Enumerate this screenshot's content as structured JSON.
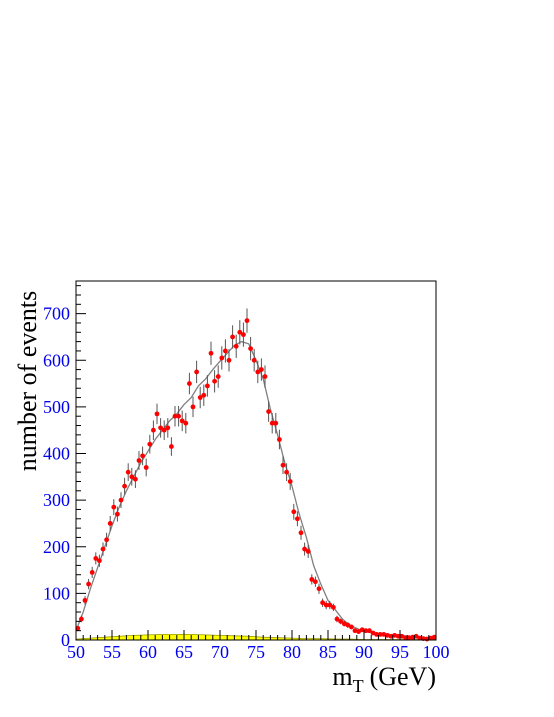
{
  "chart_data": {
    "type": "scatter",
    "title": "",
    "xlabel": "m",
    "xlabel_sub": "T",
    "xlabel_unit": "(GeV)",
    "ylabel": "number of events",
    "xlim": [
      50,
      100
    ],
    "ylim": [
      0,
      770
    ],
    "xticks": [
      "50",
      "55",
      "60",
      "65",
      "70",
      "75",
      "80",
      "85",
      "90",
      "95",
      "100"
    ],
    "yticks": [
      "0",
      "100",
      "200",
      "300",
      "400",
      "500",
      "600",
      "700"
    ],
    "grid": false,
    "colors": {
      "data_points": "#ff0000",
      "fit_curve": "#808080",
      "background": "#ffff00",
      "tick_labels": "#0000ee",
      "axes": "#000000"
    },
    "series": [
      {
        "kind": "data_points_with_errors",
        "x": [
          50.25,
          50.75,
          51.25,
          51.75,
          52.25,
          52.75,
          53.25,
          53.75,
          54.25,
          54.75,
          55.25,
          55.75,
          56.25,
          56.75,
          57.25,
          57.75,
          58.25,
          58.75,
          59.25,
          59.75,
          60.25,
          60.75,
          61.25,
          61.75,
          62.25,
          62.75,
          63.25,
          63.75,
          64.25,
          64.75,
          65.25,
          65.75,
          66.25,
          66.75,
          67.25,
          67.75,
          68.25,
          68.75,
          69.25,
          69.75,
          70.25,
          70.75,
          71.25,
          71.75,
          72.25,
          72.75,
          73.25,
          73.75,
          74.25,
          74.75,
          75.25,
          75.75,
          76.25,
          76.75,
          77.25,
          77.75,
          78.25,
          78.75,
          79.25,
          79.75,
          80.25,
          80.75,
          81.25,
          81.75,
          82.25,
          82.75,
          83.25,
          83.75,
          84.25,
          84.75,
          85.25,
          85.75,
          86.25,
          86.75,
          87.25,
          87.75,
          88.25,
          88.75,
          89.25,
          89.75,
          90.25,
          90.75,
          91.25,
          91.75,
          92.25,
          92.75,
          93.25,
          93.75,
          94.25,
          94.75,
          95.25,
          95.75,
          96.25,
          96.75,
          97.25,
          97.75,
          98.25,
          98.75,
          99.25,
          99.75
        ],
        "y": [
          25,
          45,
          85,
          120,
          145,
          175,
          170,
          195,
          215,
          250,
          285,
          270,
          300,
          330,
          360,
          350,
          345,
          385,
          395,
          370,
          420,
          450,
          485,
          455,
          450,
          455,
          415,
          480,
          480,
          470,
          465,
          550,
          500,
          575,
          520,
          525,
          545,
          615,
          555,
          565,
          605,
          620,
          600,
          650,
          630,
          660,
          655,
          685,
          625,
          600,
          575,
          580,
          565,
          490,
          465,
          465,
          430,
          375,
          360,
          340,
          275,
          260,
          230,
          195,
          190,
          130,
          125,
          110,
          80,
          75,
          75,
          70,
          45,
          40,
          35,
          32,
          28,
          20,
          18,
          22,
          20,
          20,
          15,
          12,
          12,
          12,
          10,
          8,
          10,
          8,
          8,
          5,
          5,
          6,
          8,
          4,
          3,
          2,
          4,
          6
        ],
        "err": [
          5,
          7,
          9,
          11,
          12,
          13,
          13,
          14,
          15,
          16,
          17,
          16,
          17,
          18,
          19,
          19,
          19,
          20,
          20,
          19,
          20,
          21,
          22,
          21,
          21,
          21,
          20,
          22,
          22,
          22,
          22,
          23,
          22,
          24,
          23,
          23,
          23,
          25,
          24,
          24,
          25,
          25,
          24,
          25,
          25,
          26,
          26,
          26,
          25,
          24,
          24,
          24,
          24,
          22,
          22,
          22,
          21,
          19,
          19,
          18,
          17,
          16,
          15,
          14,
          14,
          11,
          11,
          11,
          9,
          9,
          9,
          8,
          7,
          6,
          6,
          6,
          5,
          4,
          4,
          5,
          4,
          4,
          4,
          3,
          3,
          3,
          3,
          3,
          3,
          3,
          3,
          2,
          2,
          2,
          3,
          2,
          2,
          1,
          2,
          2
        ]
      },
      {
        "kind": "fit_curve",
        "x": [
          50,
          51,
          52,
          53,
          54,
          55,
          56,
          57,
          58,
          59,
          60,
          61,
          62,
          63,
          64,
          65,
          66,
          67,
          68,
          69,
          70,
          71,
          72,
          73,
          74,
          75,
          76,
          77,
          78,
          79,
          80,
          81,
          82,
          83,
          84,
          85,
          86,
          87,
          88,
          89,
          90,
          92,
          94,
          96,
          98,
          100
        ],
        "y": [
          20,
          60,
          110,
          155,
          200,
          245,
          285,
          320,
          350,
          380,
          405,
          430,
          450,
          470,
          485,
          505,
          520,
          545,
          560,
          580,
          598,
          615,
          632,
          640,
          635,
          600,
          560,
          495,
          440,
          380,
          330,
          270,
          220,
          160,
          120,
          85,
          65,
          45,
          32,
          25,
          18,
          14,
          11,
          8,
          5,
          4
        ]
      },
      {
        "kind": "background_histogram",
        "x": [
          50,
          52,
          54,
          56,
          58,
          60,
          62,
          64,
          66,
          68,
          70,
          72,
          74,
          76,
          78,
          80,
          82,
          84,
          86,
          88,
          90,
          92,
          94,
          96,
          98,
          100
        ],
        "y": [
          2,
          4,
          6,
          8,
          10,
          11,
          12,
          12,
          12,
          11,
          10,
          9,
          8,
          6,
          5,
          4,
          3,
          3,
          2,
          2,
          1,
          1,
          1,
          1,
          1,
          1
        ]
      }
    ]
  }
}
